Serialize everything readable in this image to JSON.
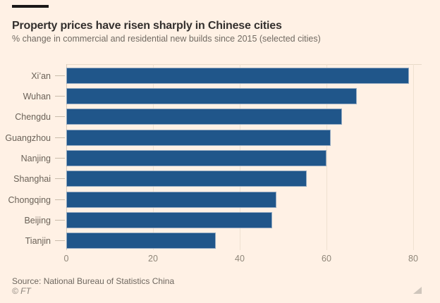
{
  "header": {
    "title": "Property prices have risen sharply in Chinese cities",
    "subtitle": "% change in commercial and residential new builds since 2015 (selected cities)"
  },
  "footer": {
    "source": "Source: National Bureau of Statistics China",
    "copyright": "© FT"
  },
  "colors": {
    "background": "#FFF1E5",
    "bar": "#20568A",
    "title_text": "#33302E",
    "muted_text": "#6B6258",
    "tick_text": "#8F8679",
    "gridline": "#EFE1D1",
    "zero_gridline": "#D9CCBB"
  },
  "chart_data": {
    "type": "bar",
    "orientation": "horizontal",
    "title": "Property prices have risen sharply in Chinese cities",
    "subtitle": "% change in commercial and residential new builds since 2015 (selected cities)",
    "categories": [
      "Xi’an",
      "Wuhan",
      "Chengdu",
      "Guangzhou",
      "Nanjing",
      "Shanghai",
      "Chongqing",
      "Beijing",
      "Tianjin"
    ],
    "values": [
      79,
      67,
      63.5,
      61,
      60,
      55.5,
      48.5,
      47.5,
      34.5
    ],
    "xlabel": "",
    "ylabel": "",
    "xlim": [
      0,
      80
    ],
    "xticks": [
      0,
      20,
      40,
      60,
      80
    ],
    "grid": "vertical-only",
    "legend": "none",
    "source": "Source: National Bureau of Statistics China"
  }
}
